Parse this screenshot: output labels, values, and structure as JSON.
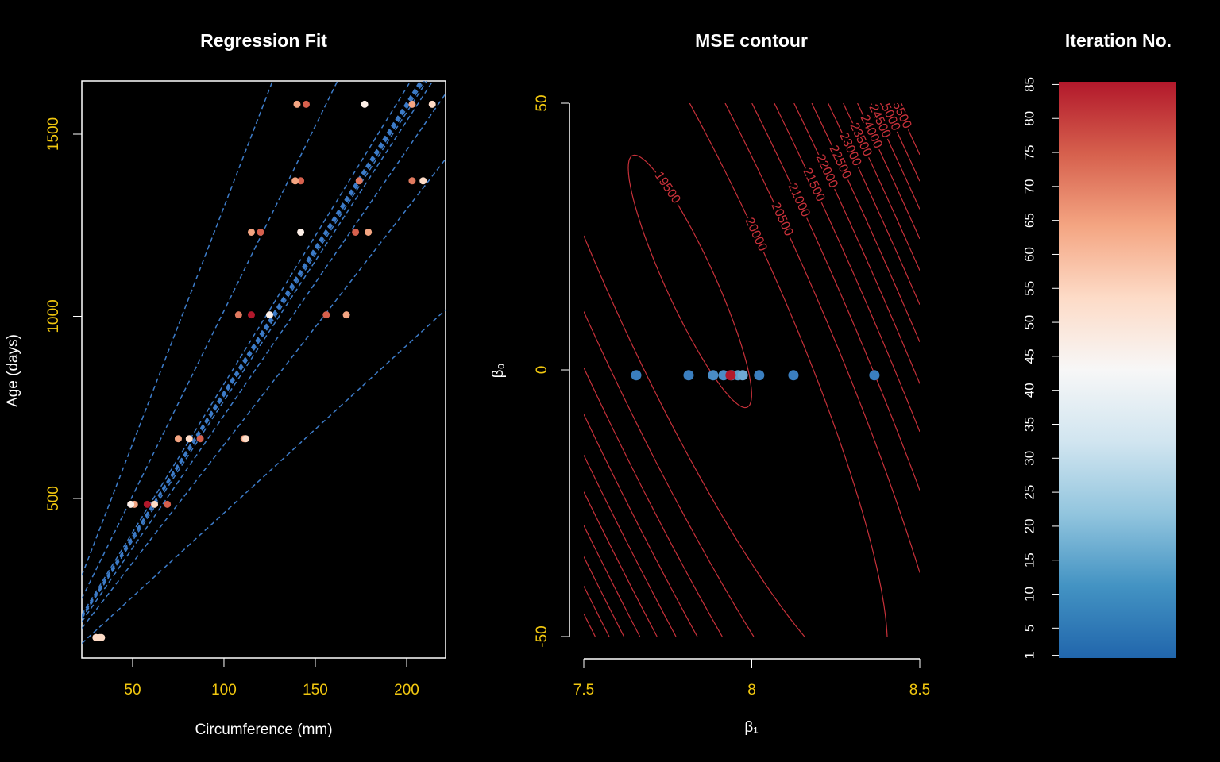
{
  "chart_data": [
    {
      "type": "scatter",
      "title": "Regression Fit",
      "x_label": "Circumference (mm)",
      "y_label": "Age (days)",
      "x": [
        30,
        58,
        87,
        115,
        120,
        142,
        145,
        33,
        69,
        111,
        156,
        172,
        203,
        203,
        30,
        51,
        75,
        108,
        115,
        139,
        140,
        32,
        62,
        112,
        167,
        179,
        209,
        214,
        30,
        49,
        81,
        125,
        142,
        174,
        177
      ],
      "y": [
        118,
        484,
        664,
        1004,
        1231,
        1372,
        1582,
        118,
        484,
        664,
        1004,
        1231,
        1372,
        1582,
        118,
        484,
        664,
        1004,
        1231,
        1372,
        1582,
        118,
        484,
        664,
        1004,
        1231,
        1372,
        1582,
        118,
        484,
        664,
        1004,
        1231,
        1372,
        1582
      ],
      "colors": [
        "#f4a582",
        "#b2182b",
        "#d6604d",
        "#b2182b",
        "#d6604d",
        "#d6604d",
        "#d6604d",
        "#fddbc7",
        "#d6604d",
        "#f4a582",
        "#d6604d",
        "#d6604d",
        "#e07a5f",
        "#f4a582",
        "#f4a582",
        "#f4a582",
        "#f4a582",
        "#e0795f",
        "#f4a582",
        "#f4a582",
        "#f4a582",
        "#fddbc7",
        "#fddbc7",
        "#fddbc7",
        "#f4a582",
        "#f4a582",
        "#fddbc7",
        "#fddbc7",
        "#fddbc7",
        "#fef0e8",
        "#fddbc7",
        "#fef0e8",
        "#fef0e8",
        "#e0795f",
        "#fef0e8"
      ],
      "xlim": [
        22.2,
        221.3
      ],
      "ylim": [
        62,
        1646
      ],
      "xticks": [
        50,
        100,
        150,
        200
      ],
      "yticks": [
        500,
        1000,
        1500
      ],
      "fit_slopes": [
        13.0,
        10.15,
        4.6,
        8.14,
        6.47,
        7.28,
        7.68,
        7.8,
        7.85,
        7.88,
        7.9,
        7.92,
        7.93,
        7.94
      ],
      "fit_color": "#3d7cc9"
    },
    {
      "type": "contour",
      "title": "MSE contour",
      "x_label": "β₁",
      "y_label": "β₀",
      "xlim": [
        7.5,
        8.5
      ],
      "ylim": [
        -50,
        50
      ],
      "xticks": [
        7.5,
        8,
        8.5
      ],
      "yticks": [
        -50,
        0,
        50
      ],
      "levels": [
        19500,
        20000,
        20500,
        21000,
        21500,
        22000,
        22500,
        23000,
        23500,
        24000,
        24500,
        25000,
        25500
      ],
      "line_color": "#c8313a",
      "iterations": {
        "x": [
          7.656,
          7.812,
          7.885,
          7.916,
          7.94,
          7.959,
          7.973,
          8.022,
          8.124,
          8.365,
          7.937
        ],
        "y": [
          -1,
          -1,
          -1,
          -1,
          -1,
          -1,
          -1,
          -1,
          -1,
          -1,
          -1
        ],
        "colors": [
          "#3a7ebf",
          "#3a7ebf",
          "#4a8cc6",
          "#4a8cc6",
          "#5d9bcd",
          "#5d9bcd",
          "#6ea7d3",
          "#3a7ebf",
          "#3a7ebf",
          "#3a7ebf",
          "#b2182b"
        ]
      }
    },
    {
      "type": "colorbar",
      "title": "Iteration No.",
      "ylim": [
        0.6,
        85.4
      ],
      "yticks": [
        1,
        5,
        10,
        15,
        20,
        25,
        30,
        35,
        40,
        45,
        50,
        55,
        60,
        65,
        70,
        75,
        80,
        85
      ],
      "colors": [
        "#2166ac",
        "#4393c3",
        "#92c5de",
        "#d1e5f0",
        "#f7f7f7",
        "#fddbc7",
        "#f4a582",
        "#d6604d",
        "#b2182b"
      ]
    }
  ]
}
